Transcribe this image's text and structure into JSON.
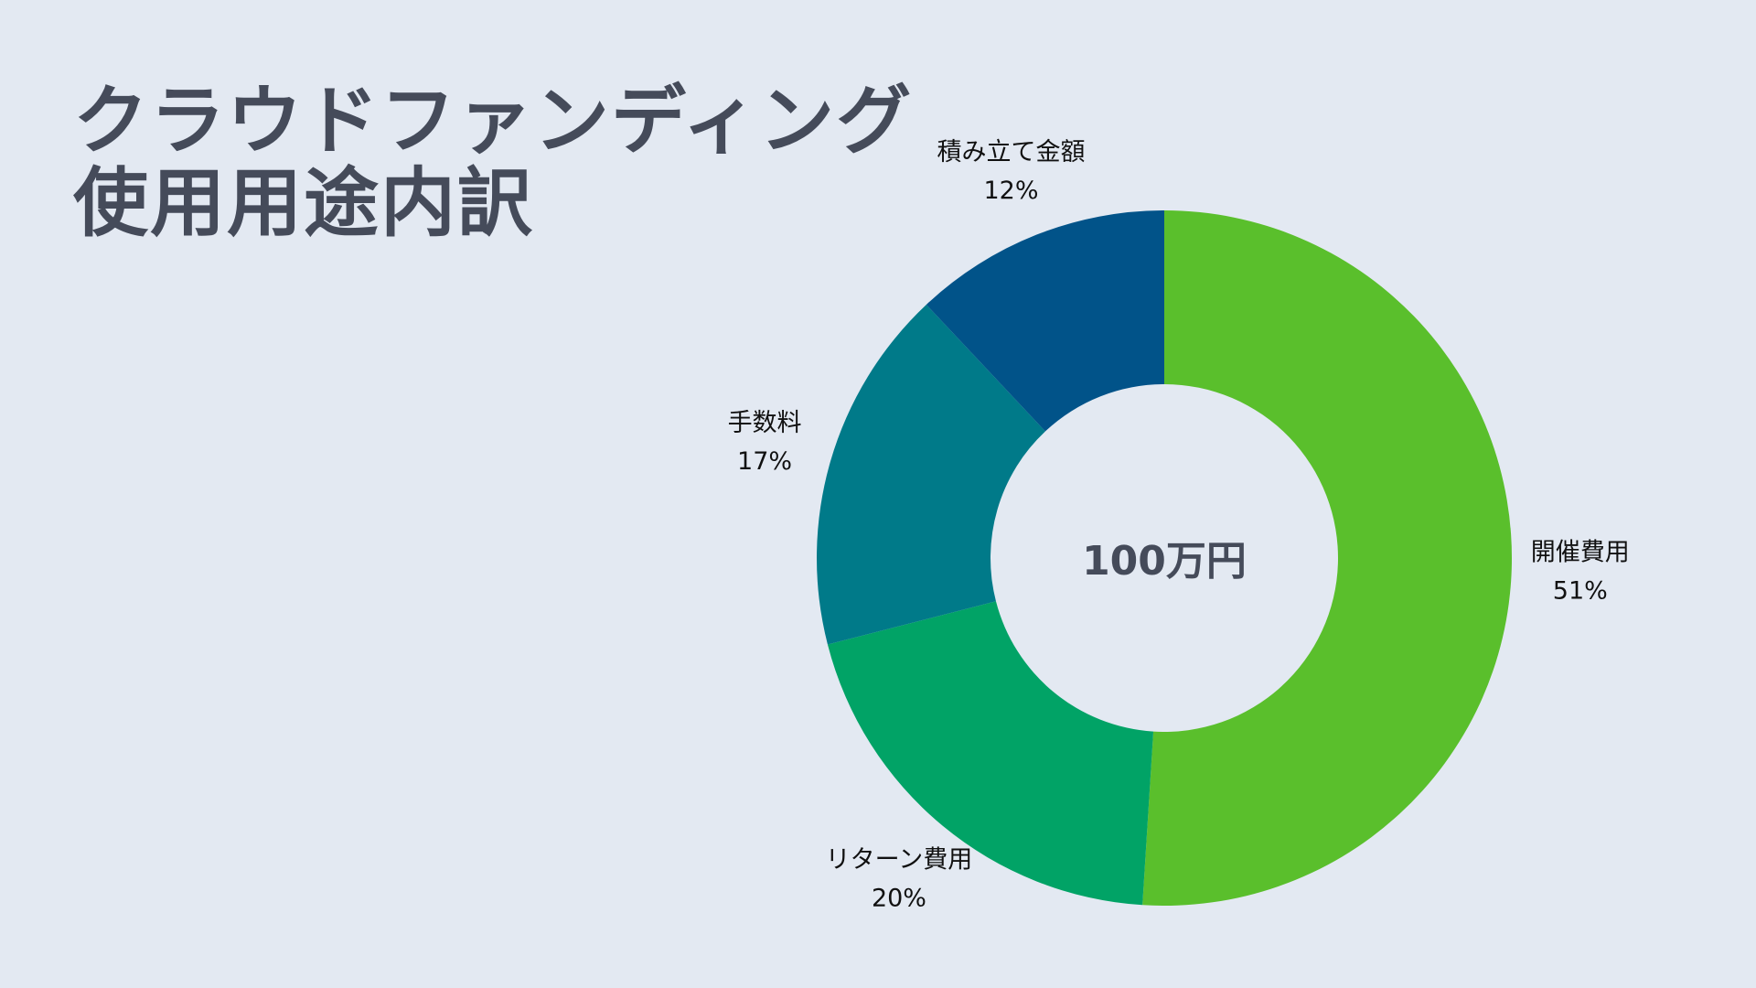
{
  "title_lines": [
    "クラウドファンディング",
    "使用用途内訳"
  ],
  "center_label": "100万円",
  "chart_data": {
    "type": "pie",
    "variant": "donut",
    "title": "クラウドファンディング使用用途内訳",
    "center_text": "100万円",
    "slices": [
      {
        "label": "開催費用",
        "value": 51,
        "value_label": "51%",
        "color": "#5abf2c"
      },
      {
        "label": "リターン費用",
        "value": 20,
        "value_label": "20%",
        "color": "#01a366"
      },
      {
        "label": "手数料",
        "value": 17,
        "value_label": "17%",
        "color": "#007a89"
      },
      {
        "label": "積み立て金額",
        "value": 12,
        "value_label": "12%",
        "color": "#015389"
      }
    ],
    "start": "12 o'clock",
    "direction": "clockwise",
    "legend": "none",
    "background": "#e3e9f2"
  }
}
